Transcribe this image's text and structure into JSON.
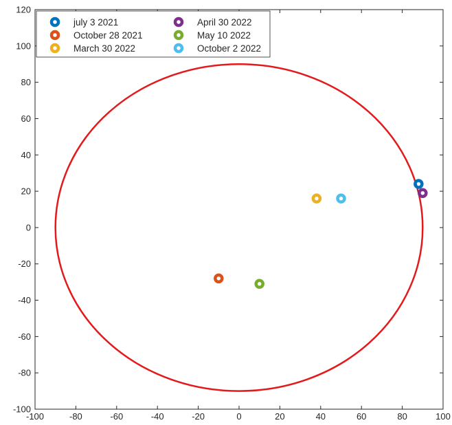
{
  "chart_data": {
    "type": "scatter",
    "title": "",
    "xlabel": "",
    "ylabel": "",
    "xlim": [
      -100,
      100
    ],
    "ylim": [
      -100,
      120
    ],
    "xticks": [
      -100,
      -80,
      -60,
      -40,
      -20,
      0,
      20,
      40,
      60,
      80,
      100
    ],
    "yticks": [
      -100,
      -80,
      -60,
      -40,
      -20,
      0,
      20,
      40,
      60,
      80,
      100,
      120
    ],
    "grid": false,
    "legend_position": "top-left",
    "legend_columns": 2,
    "circle": {
      "cx": 0,
      "cy": 0,
      "r": 90,
      "color": "#e31a1c"
    },
    "series": [
      {
        "name": "july 3 2021",
        "color": "#0072bd",
        "x": [
          88
        ],
        "y": [
          24
        ]
      },
      {
        "name": "October 28 2021",
        "color": "#d95319",
        "x": [
          -10
        ],
        "y": [
          -28
        ]
      },
      {
        "name": "March 30 2022",
        "color": "#edb120",
        "x": [
          38
        ],
        "y": [
          16
        ]
      },
      {
        "name": "April 30 2022",
        "color": "#7e2f8e",
        "x": [
          90
        ],
        "y": [
          19
        ]
      },
      {
        "name": "May 10 2022",
        "color": "#77ac30",
        "x": [
          10
        ],
        "y": [
          -31
        ]
      },
      {
        "name": "October 2 2022",
        "color": "#4dbeee",
        "x": [
          50
        ],
        "y": [
          16
        ]
      }
    ]
  }
}
